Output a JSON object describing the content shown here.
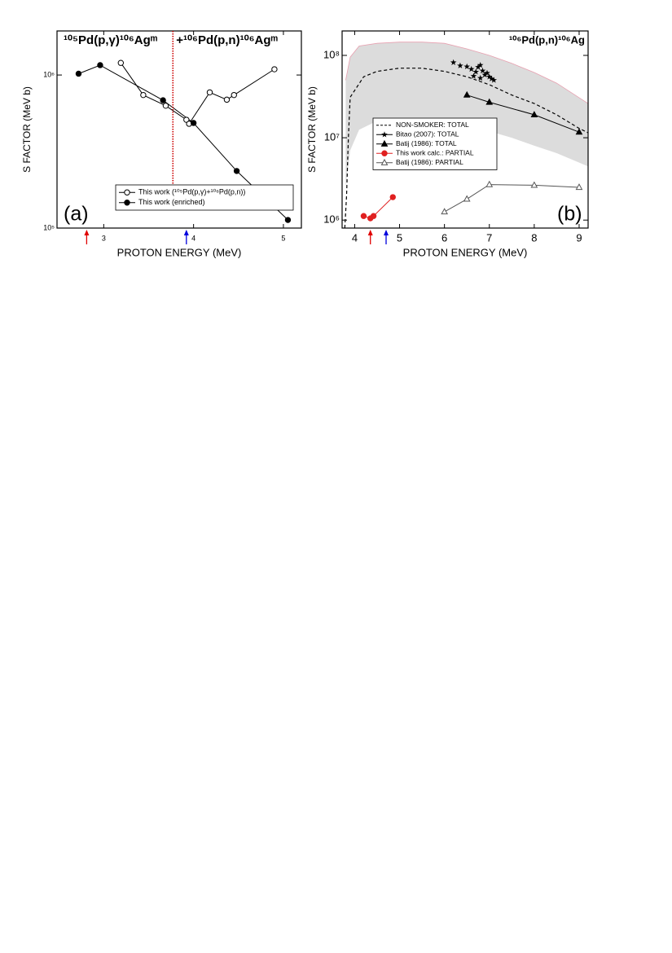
{
  "chart_data": [
    {
      "type": "line",
      "xlabel": "PROTON ENERGY (MeV)",
      "ylabel": "S FACTOR (MeV b)",
      "log_y": true,
      "xlim": [
        2.48,
        5.2
      ],
      "ylim": [
        100000,
        1940000
      ],
      "xticks": [
        3,
        4,
        5
      ],
      "yticks": [
        {
          "value": 100000,
          "label": "10⁵"
        },
        {
          "value": 1000000,
          "label": "10⁶"
        }
      ],
      "legend": "lower right",
      "annotations": [
        "¹⁰⁵Pd(p,γ)¹⁰⁶Agᵐ",
        "+¹⁰⁶Pd(p,n)¹⁰⁶Agᵐ",
        "(a)"
      ],
      "vline": 3.77,
      "vline_color": "#cc0000",
      "arrows": [
        2.81,
        3.92
      ],
      "arrow_colors": [
        "#e00000",
        "#0000dd"
      ],
      "series": [
        {
          "name": "This work (¹⁰⁵Pd(p,γ)+¹⁰⁶Pd(p,n))",
          "color": "#000000",
          "marker": "circle-open",
          "line": true,
          "x": [
            3.19,
            3.44,
            3.69,
            3.92,
            3.95,
            4.18,
            4.37,
            4.45,
            4.9
          ],
          "values": [
            1200000,
            740000,
            630000,
            510000,
            480000,
            770000,
            690000,
            740000,
            1090000
          ]
        },
        {
          "name": "This work (enriched)",
          "color": "#000000",
          "marker": "circle-filled",
          "line": true,
          "x": [
            2.72,
            2.96,
            3.66,
            4.0,
            4.48,
            5.05
          ],
          "values": [
            1020000,
            1160000,
            684000,
            486000,
            236000,
            113000
          ]
        }
      ]
    },
    {
      "type": "line",
      "xlabel": "PROTON ENERGY (MeV)",
      "ylabel": "S FACTOR (MeV b)",
      "log_y": true,
      "xlim": [
        3.72,
        9.2
      ],
      "ylim": [
        800000,
        198000000
      ],
      "xticks": [
        4,
        5,
        6,
        7,
        8,
        9
      ],
      "yticks": [
        {
          "value": 1000000,
          "label": "10⁶"
        },
        {
          "value": 10000000,
          "label": "10⁷"
        },
        {
          "value": 100000000,
          "label": "10⁸"
        }
      ],
      "legend": "center left",
      "annotations": [
        "¹⁰⁶Pd(p,n)¹⁰⁶Ag",
        "(b)"
      ],
      "arrows": [
        4.35,
        4.7
      ],
      "arrow_colors": [
        "#e00000",
        "#0000dd"
      ],
      "band": {
        "color": "#dcdcdc",
        "edge_color": "#e8a0b0",
        "x": [
          3.8,
          3.9,
          4.1,
          4.5,
          5,
          5.5,
          6,
          6.5,
          7,
          7.5,
          8,
          8.5,
          9.2
        ],
        "upper": [
          50000000,
          95000000,
          130000000,
          140000000,
          145000000,
          145000000,
          140000000,
          120000000,
          100000000,
          80000000,
          62000000,
          46000000,
          26000000
        ],
        "lower": [
          2500000,
          7000000,
          12500000,
          16000000,
          17000000,
          16000000,
          15000000,
          13500000,
          12000000,
          10000000,
          8000000,
          6500000,
          4500000
        ]
      },
      "series": [
        {
          "name": "NON-SMOKER: TOTAL",
          "color": "#000000",
          "marker": "none",
          "line": true,
          "dash": true,
          "x": [
            3.78,
            3.82,
            3.86,
            3.9,
            4.2,
            4.5,
            5,
            5.5,
            6,
            6.5,
            7,
            7.5,
            8,
            8.5,
            9,
            9.2
          ],
          "values": [
            800000,
            2000000,
            10000000,
            31000000,
            55000000,
            64000000,
            70000000,
            70000000,
            64000000,
            55000000,
            44000000,
            33000000,
            26000000,
            19000000,
            13000000,
            11500000
          ]
        },
        {
          "name": "Bitao (2007): TOTAL",
          "color": "#000000",
          "marker": "star",
          "line": false,
          "x": [
            6.2,
            6.35,
            6.5,
            6.6,
            6.65,
            6.7,
            6.75,
            6.8,
            6.8,
            6.85,
            6.9,
            6.95,
            7.0,
            7.05,
            7.1
          ],
          "values": [
            82000000,
            75000000,
            73000000,
            68000000,
            56000000,
            63000000,
            72000000,
            76000000,
            53000000,
            65000000,
            58000000,
            61000000,
            55000000,
            52000000,
            50000000
          ]
        },
        {
          "name": "Batij (1986): TOTAL",
          "color": "#000000",
          "marker": "triangle-filled",
          "line": true,
          "x": [
            6.5,
            7,
            8,
            9
          ],
          "values": [
            33000000,
            27000000,
            19000000,
            11700000
          ]
        },
        {
          "name": "This work calc.: PARTIAL",
          "color": "#e02020",
          "marker": "circle-filled",
          "line": true,
          "x": [
            4.2,
            4.35,
            4.42,
            4.85
          ],
          "values": [
            1120000,
            1050000,
            1120000,
            1900000
          ]
        },
        {
          "name": "Batij (1986): PARTIAL",
          "color": "#555555",
          "marker": "triangle-open",
          "line": true,
          "x": [
            6,
            6.5,
            7,
            8,
            9
          ],
          "values": [
            1260000,
            1800000,
            2700000,
            2650000,
            2500000
          ]
        }
      ]
    }
  ]
}
